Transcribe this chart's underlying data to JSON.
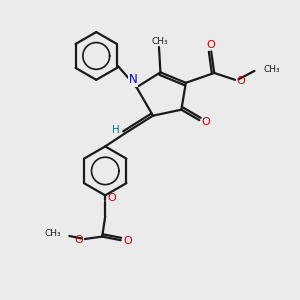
{
  "background_color": "#ebebeb",
  "bond_color": "#1a1a1a",
  "nitrogen_color": "#0000cc",
  "oxygen_color": "#cc0000",
  "hydrogen_color": "#008080",
  "line_width": 1.6,
  "figsize": [
    3.0,
    3.0
  ],
  "dpi": 100,
  "xlim": [
    0.0,
    10.0
  ],
  "ylim": [
    0.0,
    10.0
  ]
}
